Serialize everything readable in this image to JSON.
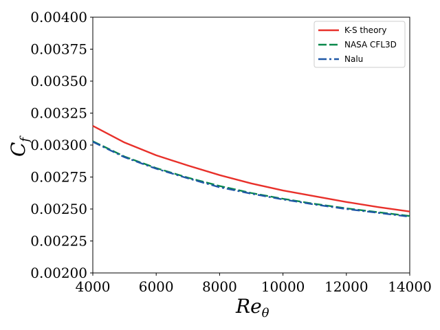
{
  "chart_data": {
    "type": "line",
    "title": "",
    "xlabel": {
      "main": "Re",
      "sub": "θ"
    },
    "ylabel": {
      "main": "C",
      "sub": "f"
    },
    "xlim": [
      4000,
      14000
    ],
    "ylim": [
      0.002,
      0.004
    ],
    "x_ticks": [
      "4000",
      "6000",
      "8000",
      "10000",
      "12000",
      "14000"
    ],
    "y_ticks": [
      "0.00200",
      "0.00225",
      "0.00250",
      "0.00275",
      "0.00300",
      "0.00325",
      "0.00350",
      "0.00375",
      "0.00400"
    ],
    "legend_position": "top-right",
    "grid": false,
    "series": [
      {
        "name": "K-S theory",
        "color": "#e8302a",
        "style": "solid",
        "x": [
          4000,
          5000,
          6000,
          7000,
          8000,
          9000,
          10000,
          11000,
          12000,
          13000,
          14000
        ],
        "y": [
          0.00315,
          0.00302,
          0.00292,
          0.00284,
          0.002765,
          0.0027,
          0.002645,
          0.0026,
          0.002555,
          0.002515,
          0.00248
        ]
      },
      {
        "name": "NASA CFL3D",
        "color": "#08884a",
        "style": "dashed",
        "x": [
          4000,
          5000,
          6000,
          7000,
          8000,
          9000,
          10000,
          11000,
          12000,
          13000,
          14000
        ],
        "y": [
          0.00303,
          0.00291,
          0.00282,
          0.002745,
          0.00268,
          0.002625,
          0.00258,
          0.00254,
          0.002505,
          0.002475,
          0.002445
        ]
      },
      {
        "name": "Nalu",
        "color": "#1f57a6",
        "style": "dashdot",
        "x": [
          4000,
          5000,
          6000,
          7000,
          8000,
          9000,
          10000,
          11000,
          12000,
          13000,
          14000
        ],
        "y": [
          0.003025,
          0.002905,
          0.002815,
          0.00274,
          0.00267,
          0.00262,
          0.002575,
          0.002535,
          0.0025,
          0.00247,
          0.00244
        ]
      }
    ]
  }
}
